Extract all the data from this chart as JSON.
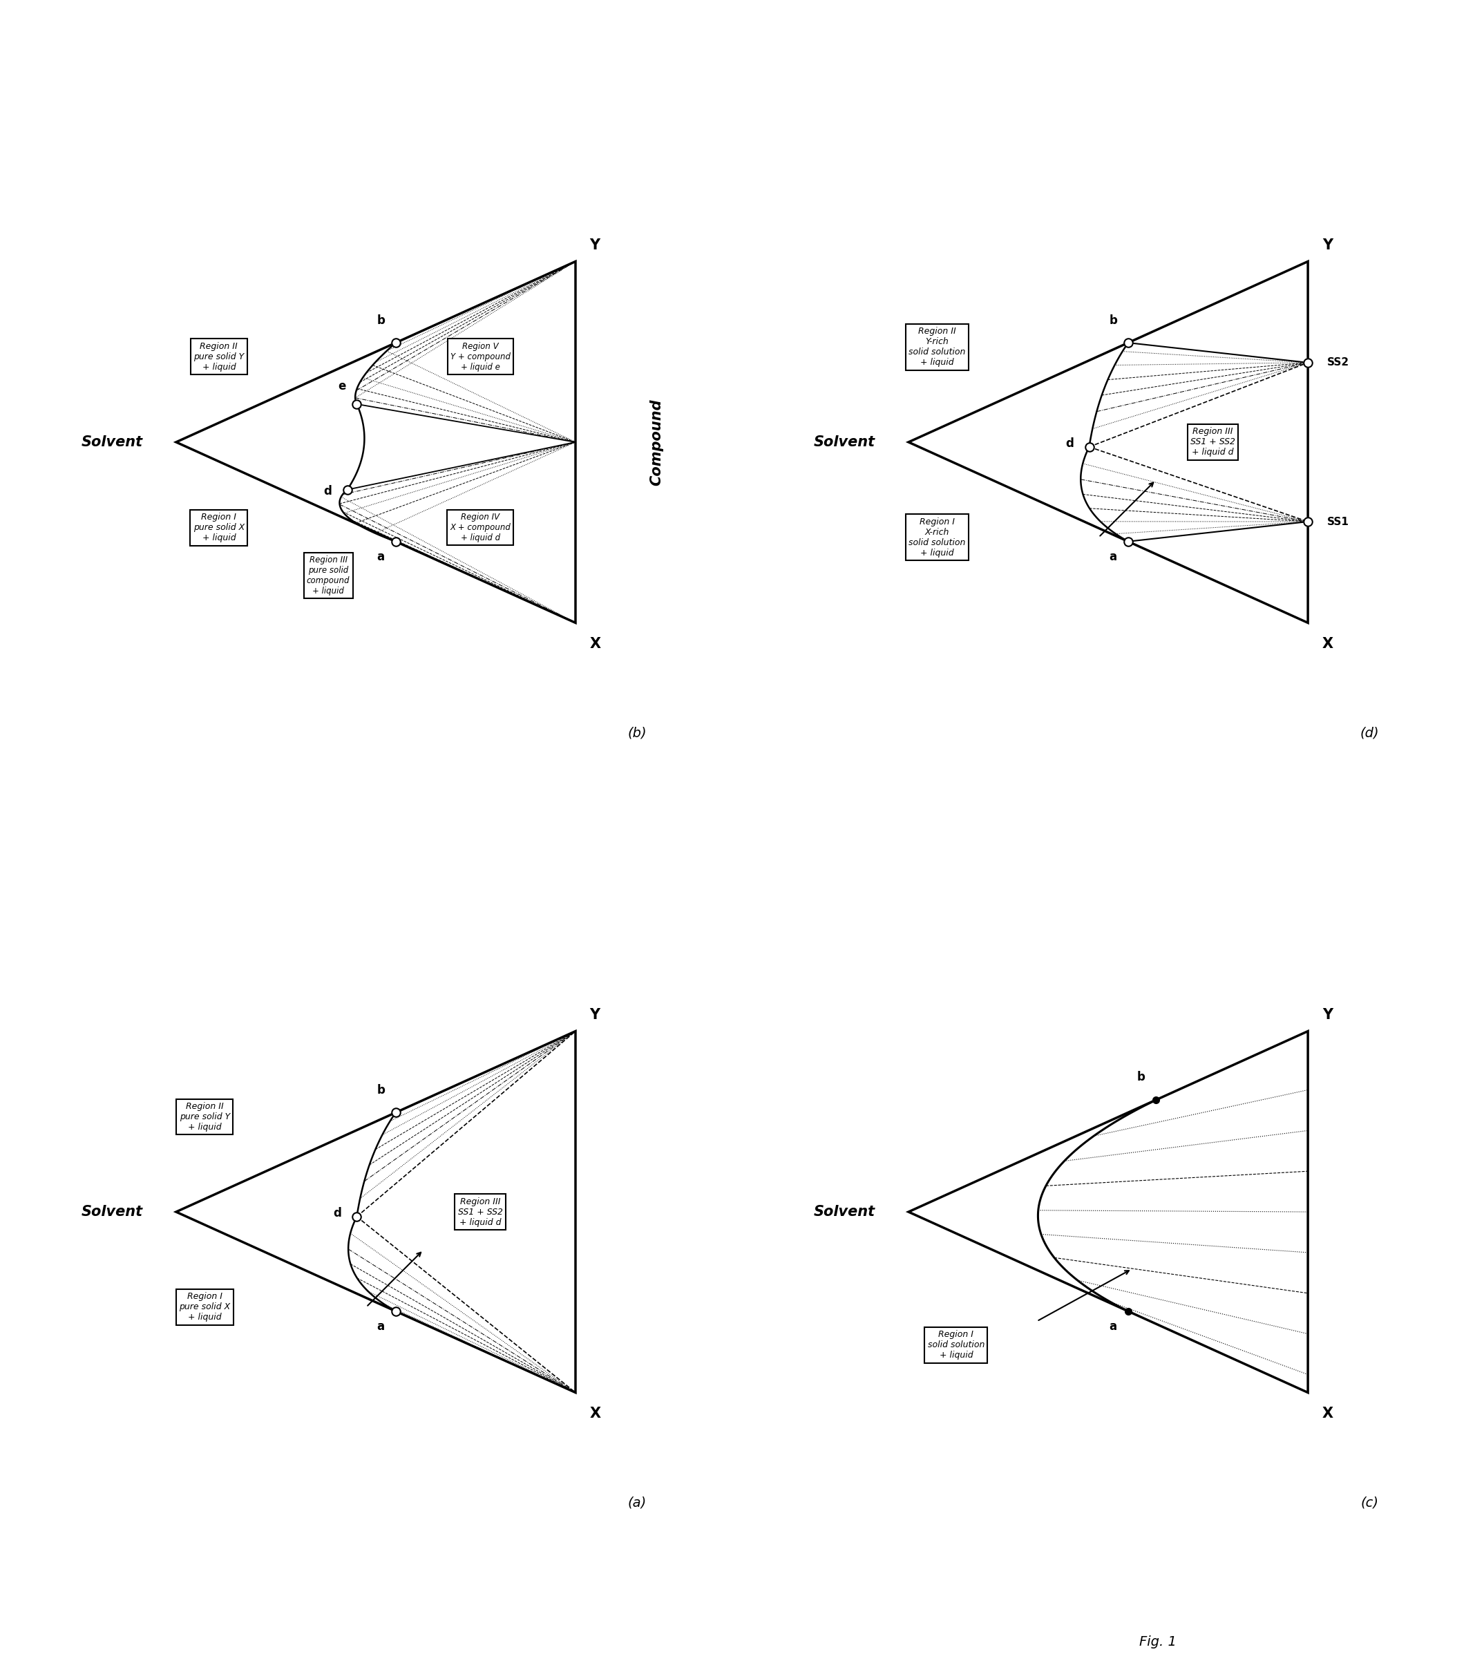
{
  "background": "#ffffff",
  "fig_label": "Fig. 1",
  "panels": {
    "top_left_label": "(b)",
    "top_right_label": "(d)",
    "bottom_left_label": "(a)",
    "bottom_right_label": "(c)"
  },
  "triangle": {
    "S": [
      0.08,
      0.5
    ],
    "X": [
      0.92,
      0.12
    ],
    "Y": [
      0.92,
      0.88
    ]
  },
  "colors": {
    "black": "#000000",
    "white": "#ffffff"
  }
}
